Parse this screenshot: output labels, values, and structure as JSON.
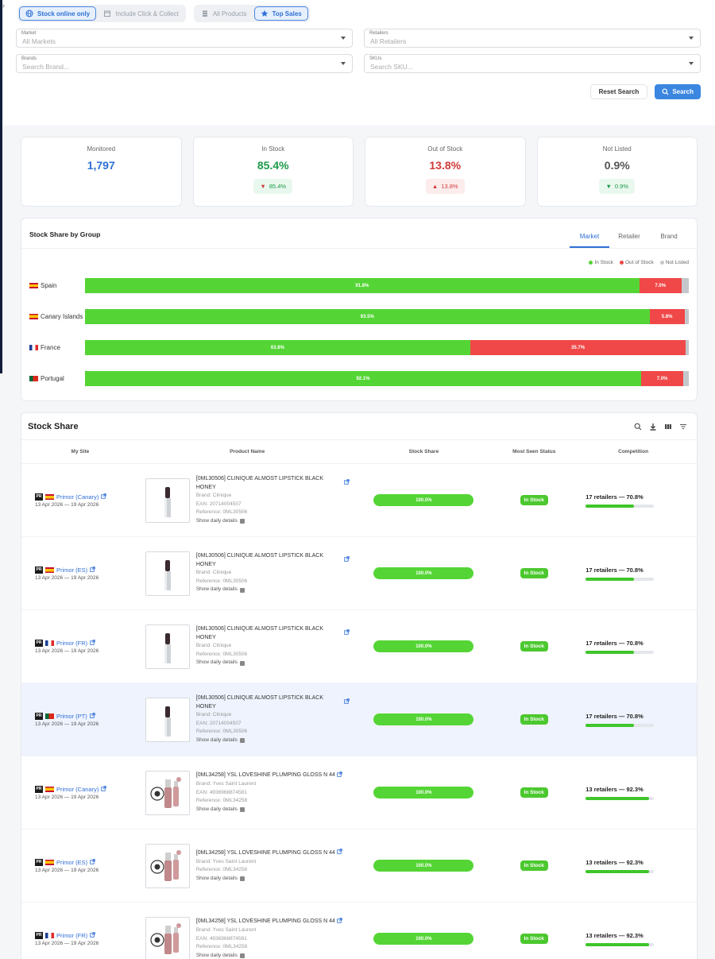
{
  "toggles": {
    "stock_online": "Stock online only",
    "click_collect": "Include Click & Collect",
    "all_products": "All Products",
    "top_sales": "Top Sales"
  },
  "filters": {
    "market": {
      "label": "Market",
      "value": "All Markets"
    },
    "retailers": {
      "label": "Retailers",
      "value": "All Retailers"
    },
    "brands": {
      "label": "Brands",
      "placeholder": "Search Brand..."
    },
    "skus": {
      "label": "SKUs",
      "placeholder": "Search SKU..."
    }
  },
  "actions": {
    "reset": "Reset Search",
    "search": "Search"
  },
  "kpis": [
    {
      "title": "Monitored",
      "value": "1,797",
      "color": "#2f6fd6"
    },
    {
      "title": "In Stock",
      "value": "85.4%",
      "color": "#1c9a4a",
      "badge": "85.4%",
      "badge_type": "green",
      "arrow": "down"
    },
    {
      "title": "Out of Stock",
      "value": "13.8%",
      "color": "#d13a3a",
      "badge": "13.8%",
      "badge_type": "red",
      "arrow": "up"
    },
    {
      "title": "Not Listed",
      "value": "0.9%",
      "color": "#555555",
      "badge": "0.9%",
      "badge_type": "green",
      "arrow": "down"
    }
  ],
  "group": {
    "title": "Stock Share by Group",
    "tabs": [
      "Market",
      "Retailer",
      "Brand"
    ],
    "legend": {
      "in": "In Stock",
      "out": "Out of Stock",
      "nl": "Not Listed"
    },
    "rows": [
      {
        "name": "Spain",
        "flag": "es",
        "in": 91.8,
        "out": 7.0,
        "nl": 1.2,
        "in_label": "91.8%",
        "out_label": "7.0%"
      },
      {
        "name": "Canary Islands",
        "flag": "es",
        "in": 93.5,
        "out": 5.8,
        "nl": 0.7,
        "in_label": "93.5%",
        "out_label": "5.8%"
      },
      {
        "name": "France",
        "flag": "fr",
        "in": 63.8,
        "out": 35.7,
        "nl": 0.5,
        "in_label": "63.8%",
        "out_label": "35.7%"
      },
      {
        "name": "Portugal",
        "flag": "pt",
        "in": 92.1,
        "out": 7.0,
        "nl": 0.9,
        "in_label": "92.1%",
        "out_label": "7.0%"
      }
    ]
  },
  "stock": {
    "title": "Stock Share",
    "columns": [
      "My Site",
      "Product Name",
      "Stock Share",
      "Most Seen Status",
      "Competition"
    ],
    "pr_tag": "PR",
    "details_label": "Show daily details",
    "rows": [
      {
        "site": "Primor (Canary)",
        "flag": "es",
        "date": "13 Apr 2026 — 19 Apr 2026",
        "product": "[0ML30506] CLINIQUE ALMOST LIPSTICK BLACK HONEY",
        "brand": "Brand: Clinique",
        "ean": "EAN: 20714004507",
        "ref": "Reference: 0ML30506",
        "share": "100.0%",
        "status": "In Stock",
        "comp": "17 retailers — 70.8%",
        "comp_pct": 70.8,
        "img": "lipstick"
      },
      {
        "site": "Primor (ES)",
        "flag": "es",
        "date": "13 Apr 2026 — 19 Apr 2026",
        "product": "[0ML30506] CLINIQUE ALMOST LIPSTICK BLACK HONEY",
        "brand": "Brand: Clinique",
        "ean": "",
        "ref": "Reference: 0ML30506",
        "share": "100.0%",
        "status": "In Stock",
        "comp": "17 retailers — 70.8%",
        "comp_pct": 70.8,
        "img": "lipstick"
      },
      {
        "site": "Primor (FR)",
        "flag": "fr",
        "date": "13 Apr 2026 — 19 Apr 2026",
        "product": "[0ML30506] CLINIQUE ALMOST LIPSTICK BLACK HONEY",
        "brand": "Brand: Clinique",
        "ean": "",
        "ref": "Reference: 0ML30506",
        "share": "100.0%",
        "status": "In Stock",
        "comp": "17 retailers — 70.8%",
        "comp_pct": 70.8,
        "img": "lipstick"
      },
      {
        "site": "Primor (PT)",
        "flag": "pt",
        "date": "13 Apr 2026 — 19 Apr 2026",
        "product": "[0ML30506] CLINIQUE ALMOST LIPSTICK BLACK HONEY",
        "brand": "Brand: Clinique",
        "ean": "EAN: 20714004507",
        "ref": "Reference: 0ML30506",
        "share": "100.0%",
        "status": "In Stock",
        "comp": "17 retailers — 70.8%",
        "comp_pct": 70.8,
        "img": "lipstick",
        "highlight": true
      },
      {
        "site": "Primor (Canary)",
        "flag": "es",
        "date": "13 Apr 2026 — 19 Apr 2026",
        "product": "[0ML34258] YSL LOVESHINE PLUMPING GLOSS N 44",
        "brand": "Brand: Yves Saint Laurent",
        "ean": "EAN: 4936968874581",
        "ref": "Reference: 0ML34258",
        "share": "100.0%",
        "status": "In Stock",
        "comp": "13 retailers — 92.3%",
        "comp_pct": 92.3,
        "img": "gloss"
      },
      {
        "site": "Primor (ES)",
        "flag": "es",
        "date": "13 Apr 2026 — 19 Apr 2026",
        "product": "[0ML34258] YSL LOVESHINE PLUMPING GLOSS N 44",
        "brand": "Brand: Yves Saint Laurent",
        "ean": "",
        "ref": "Reference: 0ML34258",
        "share": "100.0%",
        "status": "In Stock",
        "comp": "13 retailers — 92.3%",
        "comp_pct": 92.3,
        "img": "gloss"
      },
      {
        "site": "Primor (FR)",
        "flag": "fr",
        "date": "13 Apr 2026 — 19 Apr 2026",
        "product": "[0ML34258] YSL LOVESHINE PLUMPING GLOSS N 44",
        "brand": "Brand: Yves Saint Laurent",
        "ean": "EAN: 4936968874581",
        "ref": "Reference: 0ML34258",
        "share": "100.0%",
        "status": "In Stock",
        "comp": "13 retailers — 92.3%",
        "comp_pct": 92.3,
        "img": "gloss"
      }
    ]
  }
}
